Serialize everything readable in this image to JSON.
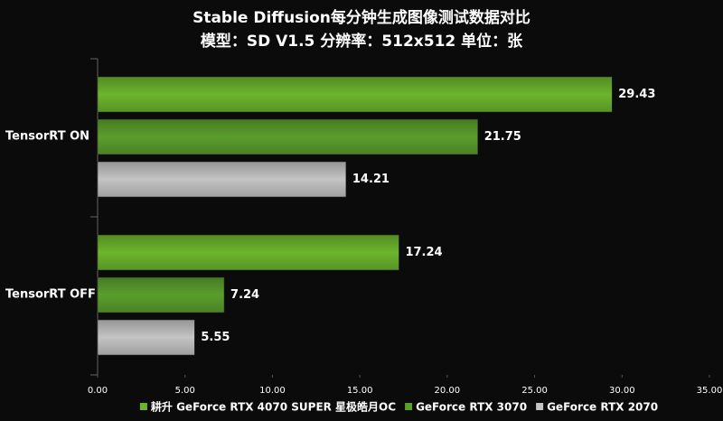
{
  "chart_data": {
    "type": "bar",
    "orientation": "horizontal",
    "title": "Stable Diffusion每分钟生成图像测试数据对比",
    "subtitle": "模型：SD V1.5  分辨率：512x512 单位：张",
    "categories": [
      "TensorRT ON",
      "TensorRT OFF"
    ],
    "series": [
      {
        "name": "耕升 GeForce RTX 4070 SUPER 星极皓月OC",
        "color": "#6cb52c",
        "values": [
          29.43,
          17.24
        ]
      },
      {
        "name": "GeForce RTX 3070",
        "color": "#5a9e2c",
        "values": [
          21.75,
          7.24
        ]
      },
      {
        "name": "GeForce RTX 2070",
        "color": "#c4c4c4",
        "values": [
          14.21,
          5.55
        ]
      }
    ],
    "xlim": [
      0,
      35
    ],
    "xticks": [
      {
        "value": 0,
        "label": "0.00"
      },
      {
        "value": 5,
        "label": "5.00"
      },
      {
        "value": 10,
        "label": "10.00"
      },
      {
        "value": 15,
        "label": "15.00"
      },
      {
        "value": 20,
        "label": "20.00"
      },
      {
        "value": 25,
        "label": "25.00"
      },
      {
        "value": 30,
        "label": "30.00"
      },
      {
        "value": 35,
        "label": "35.00"
      }
    ],
    "grid": false,
    "legend": "bottom"
  }
}
